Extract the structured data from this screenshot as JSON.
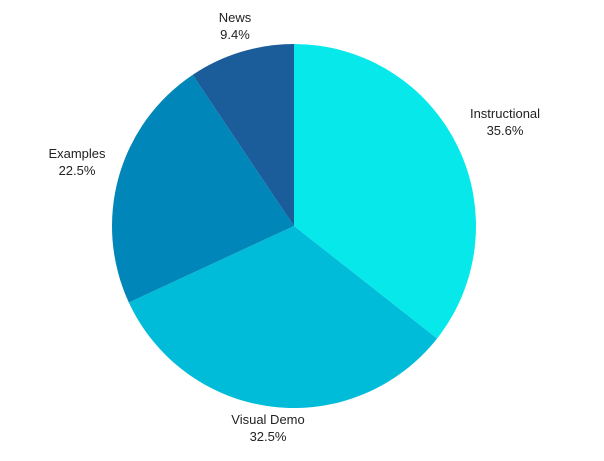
{
  "chart_data": {
    "type": "pie",
    "title": "",
    "legend": "none",
    "start_angle_deg": 0,
    "direction": "clockwise",
    "slices": [
      {
        "label": "Instructional",
        "value": 35.6,
        "value_label": "35.6%",
        "color": "#06e8ea"
      },
      {
        "label": "Visual Demo",
        "value": 32.5,
        "value_label": "32.5%",
        "color": "#00bcd9"
      },
      {
        "label": "Examples",
        "value": 22.5,
        "value_label": "22.5%",
        "color": "#0086b8"
      },
      {
        "label": "News",
        "value": 9.4,
        "value_label": "9.4%",
        "color": "#1b5c9b"
      }
    ]
  }
}
